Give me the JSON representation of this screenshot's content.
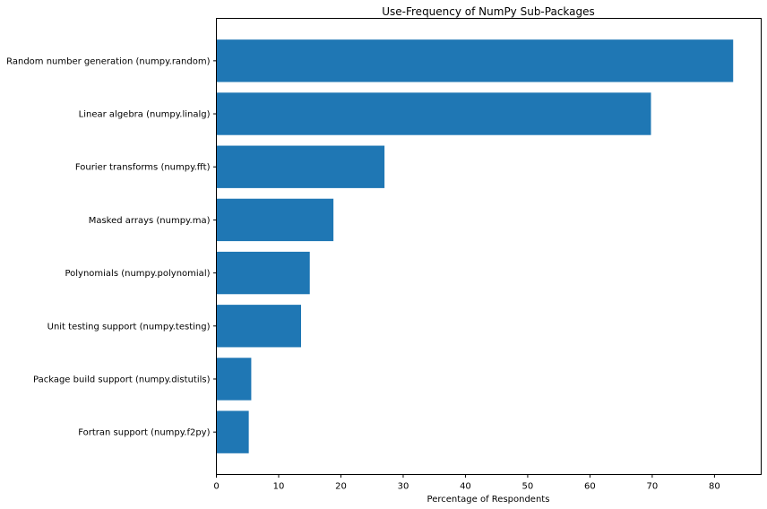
{
  "chart_data": {
    "type": "bar",
    "orientation": "horizontal",
    "title": "Use-Frequency of NumPy Sub-Packages",
    "xlabel": "Percentage of Respondents",
    "ylabel": "",
    "xlim": [
      0,
      87.5
    ],
    "xticks": [
      0,
      10,
      20,
      30,
      40,
      50,
      60,
      70,
      80
    ],
    "grid": false,
    "color": "#1f77b4",
    "categories": [
      "Random number generation (numpy.random)",
      "Linear algebra (numpy.linalg)",
      "Fourier transforms (numpy.fft)",
      "Masked arrays (numpy.ma)",
      "Polynomials (numpy.polynomial)",
      "Unit testing support (numpy.testing)",
      "Package build support (numpy.distutils)",
      "Fortran support (numpy.f2py)"
    ],
    "values": [
      83.0,
      69.8,
      27.0,
      18.8,
      15.0,
      13.6,
      5.6,
      5.2
    ]
  }
}
